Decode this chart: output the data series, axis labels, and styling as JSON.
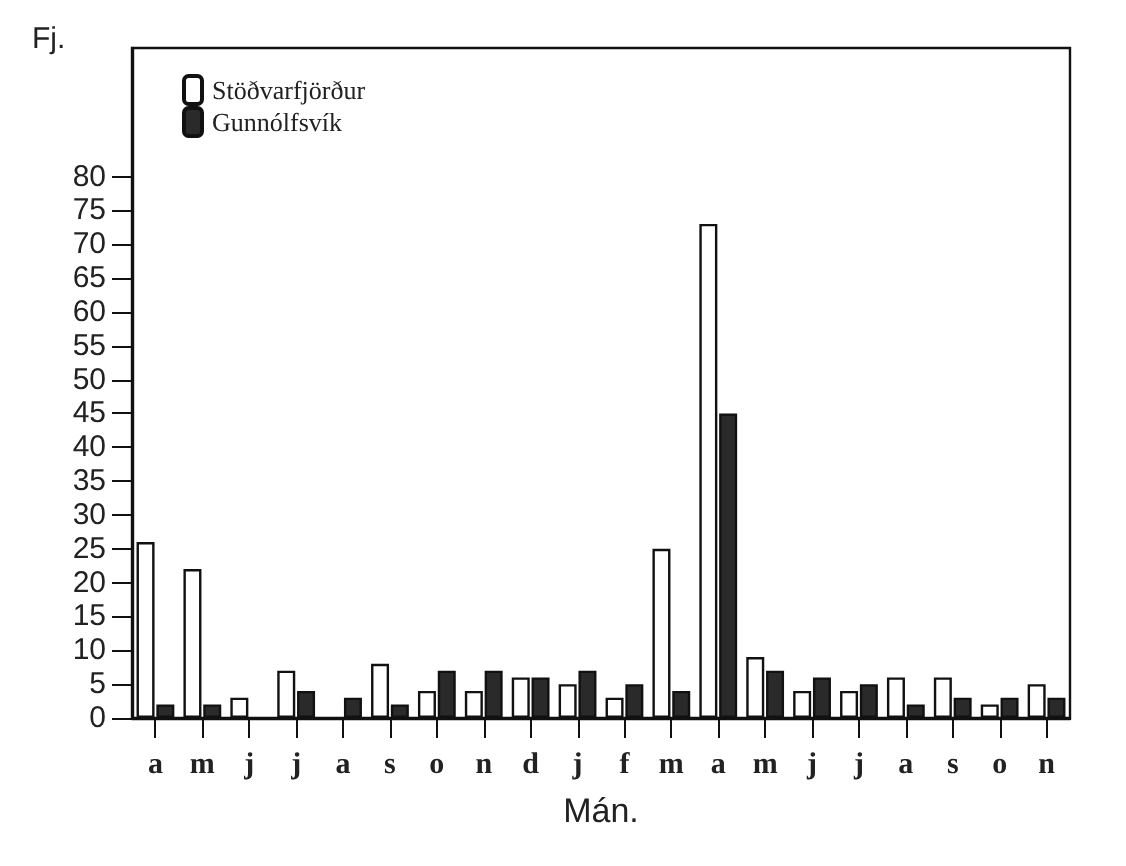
{
  "chart_data": {
    "type": "bar",
    "ylabel": "Fj.",
    "xlabel": "Mán.",
    "categories": [
      "a",
      "m",
      "j",
      "j",
      "a",
      "s",
      "o",
      "n",
      "d",
      "j",
      "f",
      "m",
      "a",
      "m",
      "j",
      "j",
      "a",
      "s",
      "o",
      "n"
    ],
    "series": [
      {
        "name": "Stöðvarfjörður",
        "color": "#ffffff",
        "values": [
          26,
          22,
          3,
          7,
          null,
          8,
          4,
          4,
          6,
          5,
          3,
          25,
          73,
          9,
          4,
          4,
          6,
          6,
          2,
          5
        ]
      },
      {
        "name": "Gunnólfsvík",
        "color": "#2a2a2a",
        "values": [
          2,
          2,
          null,
          4,
          3,
          2,
          7,
          7,
          6,
          7,
          5,
          4,
          45,
          7,
          6,
          5,
          2,
          3,
          3,
          3
        ]
      }
    ],
    "ylim": [
      0,
      99
    ],
    "yticks": [
      0,
      5,
      10,
      15,
      20,
      25,
      30,
      35,
      40,
      45,
      50,
      55,
      60,
      65,
      70,
      75,
      80
    ],
    "grid": false,
    "legend": "top left"
  }
}
